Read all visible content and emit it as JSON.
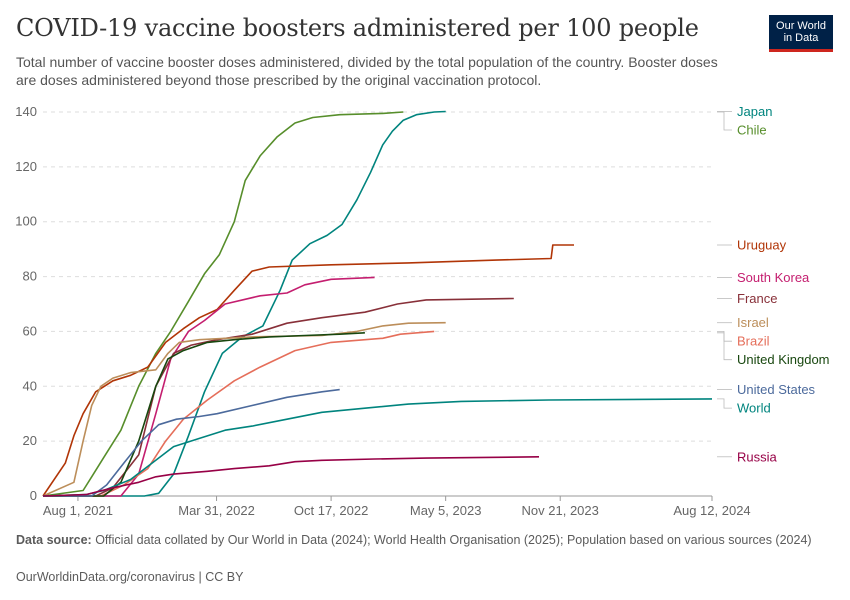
{
  "header": {
    "title": "COVID-19 vaccine boosters administered per 100 people",
    "subtitle": "Total number of vaccine booster doses administered, divided by the total population of the country. Booster doses are doses administered beyond those prescribed by the original vaccination protocol."
  },
  "logo": {
    "line1": "Our World",
    "line2": "in Data",
    "bg": "#002147",
    "accent": "#ce261e"
  },
  "footer": {
    "source_label": "Data source:",
    "source_text": " Official data collated by Our World in Data (2024); World Health Organisation (2025); Population based on various sources (2024)",
    "credit": "OurWorldinData.org/coronavirus | CC BY"
  },
  "chart_data": {
    "type": "line",
    "x_axis": {
      "type": "date",
      "range": [
        "2021-06-01",
        "2024-08-12"
      ],
      "ticks": [
        "2021-08-01",
        "2022-03-31",
        "2022-10-17",
        "2023-05-05",
        "2023-11-21",
        "2024-08-12"
      ],
      "tick_labels": [
        "Aug 1, 2021",
        "Mar 31, 2022",
        "Oct 17, 2022",
        "May 5, 2023",
        "Nov 21, 2023",
        "Aug 12, 2024"
      ]
    },
    "y_axis": {
      "range": [
        0,
        145
      ],
      "ticks": [
        0,
        20,
        40,
        60,
        80,
        100,
        120,
        140
      ]
    },
    "grid": "horizontal dashed",
    "legend": "right, labels at line ends",
    "series": [
      {
        "name": "Chile",
        "color": "#578e2b",
        "points": [
          [
            "2021-06-01",
            0
          ],
          [
            "2021-08-10",
            2
          ],
          [
            "2021-08-25",
            7
          ],
          [
            "2021-09-15",
            14
          ],
          [
            "2021-10-15",
            24
          ],
          [
            "2021-11-15",
            40
          ],
          [
            "2021-12-15",
            52
          ],
          [
            "2022-01-10",
            60
          ],
          [
            "2022-02-10",
            71
          ],
          [
            "2022-03-10",
            81
          ],
          [
            "2022-04-05",
            88
          ],
          [
            "2022-05-01",
            100
          ],
          [
            "2022-05-20",
            115
          ],
          [
            "2022-06-15",
            124
          ],
          [
            "2022-07-15",
            131
          ],
          [
            "2022-08-15",
            136
          ],
          [
            "2022-09-15",
            138
          ],
          [
            "2022-11-01",
            139
          ],
          [
            "2023-01-15",
            139.5
          ],
          [
            "2023-02-20",
            140
          ]
        ]
      },
      {
        "name": "Japan",
        "color": "#00847e",
        "points": [
          [
            "2021-06-01",
            0
          ],
          [
            "2021-11-25",
            0
          ],
          [
            "2021-12-20",
            1
          ],
          [
            "2022-01-15",
            8
          ],
          [
            "2022-02-10",
            22
          ],
          [
            "2022-03-10",
            38
          ],
          [
            "2022-04-10",
            52
          ],
          [
            "2022-05-15",
            58
          ],
          [
            "2022-06-20",
            62
          ],
          [
            "2022-07-20",
            75
          ],
          [
            "2022-08-10",
            86
          ],
          [
            "2022-09-10",
            92
          ],
          [
            "2022-10-10",
            95
          ],
          [
            "2022-11-05",
            99
          ],
          [
            "2022-12-01",
            108
          ],
          [
            "2022-12-25",
            118
          ],
          [
            "2023-01-15",
            128
          ],
          [
            "2023-02-01",
            133
          ],
          [
            "2023-02-20",
            137
          ],
          [
            "2023-03-15",
            139
          ],
          [
            "2023-04-15",
            140
          ],
          [
            "2023-05-05",
            140.2
          ]
        ]
      },
      {
        "name": "Uruguay",
        "color": "#b13507",
        "points": [
          [
            "2021-06-01",
            0
          ],
          [
            "2021-07-10",
            12
          ],
          [
            "2021-07-25",
            22
          ],
          [
            "2021-08-10",
            30
          ],
          [
            "2021-09-01",
            38
          ],
          [
            "2021-10-01",
            42
          ],
          [
            "2021-11-01",
            44
          ],
          [
            "2021-12-01",
            47
          ],
          [
            "2022-01-01",
            56
          ],
          [
            "2022-02-01",
            61
          ],
          [
            "2022-03-01",
            65
          ],
          [
            "2022-04-01",
            68
          ],
          [
            "2022-05-01",
            75
          ],
          [
            "2022-06-01",
            82
          ],
          [
            "2022-07-01",
            83.5
          ],
          [
            "2022-10-17",
            84.3
          ],
          [
            "2023-03-01",
            85
          ],
          [
            "2023-08-01",
            86
          ],
          [
            "2023-11-05",
            86.6
          ],
          [
            "2023-11-08",
            91.5
          ],
          [
            "2023-12-15",
            91.5
          ]
        ]
      },
      {
        "name": "South Korea",
        "color": "#c41e6f",
        "points": [
          [
            "2021-06-01",
            0
          ],
          [
            "2021-10-15",
            0
          ],
          [
            "2021-11-15",
            8
          ],
          [
            "2021-12-15",
            30
          ],
          [
            "2022-01-10",
            50
          ],
          [
            "2022-02-10",
            60
          ],
          [
            "2022-03-10",
            64
          ],
          [
            "2022-04-15",
            70
          ],
          [
            "2022-06-15",
            73
          ],
          [
            "2022-08-01",
            74
          ],
          [
            "2022-09-01",
            77
          ],
          [
            "2022-10-17",
            79
          ],
          [
            "2023-01-01",
            79.7
          ]
        ]
      },
      {
        "name": "France",
        "color": "#883039",
        "points": [
          [
            "2021-06-01",
            0
          ],
          [
            "2021-09-01",
            0
          ],
          [
            "2021-10-01",
            3
          ],
          [
            "2021-11-15",
            15
          ],
          [
            "2021-12-15",
            40
          ],
          [
            "2022-01-15",
            52
          ],
          [
            "2022-02-15",
            55
          ],
          [
            "2022-04-01",
            57
          ],
          [
            "2022-06-01",
            59
          ],
          [
            "2022-08-01",
            63
          ],
          [
            "2022-10-01",
            65
          ],
          [
            "2022-12-15",
            67
          ],
          [
            "2023-02-10",
            70
          ],
          [
            "2023-04-01",
            71.5
          ],
          [
            "2023-09-01",
            72
          ]
        ]
      },
      {
        "name": "Israel",
        "color": "#bc8e5a",
        "points": [
          [
            "2021-06-01",
            0
          ],
          [
            "2021-07-25",
            5
          ],
          [
            "2021-08-10",
            20
          ],
          [
            "2021-08-25",
            33
          ],
          [
            "2021-09-10",
            40
          ],
          [
            "2021-10-01",
            43
          ],
          [
            "2021-11-01",
            45
          ],
          [
            "2021-12-15",
            46
          ],
          [
            "2022-01-05",
            52
          ],
          [
            "2022-01-25",
            56
          ],
          [
            "2022-03-01",
            57
          ],
          [
            "2022-06-01",
            58
          ],
          [
            "2022-10-01",
            58.5
          ],
          [
            "2022-12-01",
            60
          ],
          [
            "2023-01-15",
            62
          ],
          [
            "2023-03-01",
            63
          ],
          [
            "2023-05-05",
            63.2
          ]
        ]
      },
      {
        "name": "Brazil",
        "color": "#e56e5a",
        "points": [
          [
            "2021-06-01",
            0
          ],
          [
            "2021-09-10",
            0
          ],
          [
            "2021-10-20",
            4
          ],
          [
            "2021-12-01",
            10
          ],
          [
            "2022-01-01",
            20
          ],
          [
            "2022-02-01",
            28
          ],
          [
            "2022-03-15",
            35
          ],
          [
            "2022-05-01",
            42
          ],
          [
            "2022-06-15",
            47
          ],
          [
            "2022-08-15",
            53
          ],
          [
            "2022-10-17",
            56
          ],
          [
            "2023-01-15",
            57.5
          ],
          [
            "2023-02-15",
            59
          ],
          [
            "2023-04-15",
            60
          ]
        ]
      },
      {
        "name": "United Kingdom",
        "color": "#18470f",
        "points": [
          [
            "2021-06-01",
            0
          ],
          [
            "2021-09-15",
            0
          ],
          [
            "2021-10-15",
            5
          ],
          [
            "2021-11-15",
            20
          ],
          [
            "2021-12-15",
            40
          ],
          [
            "2022-01-05",
            50
          ],
          [
            "2022-02-01",
            53
          ],
          [
            "2022-03-15",
            56
          ],
          [
            "2022-05-01",
            57
          ],
          [
            "2022-07-01",
            58
          ],
          [
            "2022-09-01",
            58.5
          ],
          [
            "2022-11-01",
            59
          ],
          [
            "2022-12-15",
            59.5
          ]
        ]
      },
      {
        "name": "United States",
        "color": "#4c6a9c",
        "points": [
          [
            "2021-06-01",
            0
          ],
          [
            "2021-08-25",
            0
          ],
          [
            "2021-09-20",
            4
          ],
          [
            "2021-10-20",
            12
          ],
          [
            "2021-11-20",
            20
          ],
          [
            "2021-12-20",
            26
          ],
          [
            "2022-01-20",
            28
          ],
          [
            "2022-03-01",
            29
          ],
          [
            "2022-04-01",
            30
          ],
          [
            "2022-06-01",
            33
          ],
          [
            "2022-08-01",
            36
          ],
          [
            "2022-10-01",
            38
          ],
          [
            "2022-11-01",
            38.8
          ]
        ]
      },
      {
        "name": "World",
        "color": "#00847e",
        "points": [
          [
            "2021-06-01",
            0
          ],
          [
            "2021-08-15",
            0.5
          ],
          [
            "2021-09-15",
            2
          ],
          [
            "2021-11-01",
            6
          ],
          [
            "2021-12-15",
            13
          ],
          [
            "2022-01-15",
            18
          ],
          [
            "2022-03-01",
            21
          ],
          [
            "2022-04-15",
            24
          ],
          [
            "2022-06-01",
            25.5
          ],
          [
            "2022-08-01",
            28
          ],
          [
            "2022-10-01",
            30.5
          ],
          [
            "2022-12-15",
            32
          ],
          [
            "2023-03-01",
            33.5
          ],
          [
            "2023-06-01",
            34.5
          ],
          [
            "2023-11-01",
            35
          ],
          [
            "2024-08-12",
            35.4
          ]
        ]
      },
      {
        "name": "Russia",
        "color": "#970046",
        "points": [
          [
            "2021-06-01",
            0
          ],
          [
            "2021-08-15",
            0.5
          ],
          [
            "2021-10-01",
            3
          ],
          [
            "2021-11-15",
            5
          ],
          [
            "2021-12-15",
            7
          ],
          [
            "2022-01-15",
            8
          ],
          [
            "2022-03-15",
            9
          ],
          [
            "2022-05-01",
            10
          ],
          [
            "2022-07-01",
            11
          ],
          [
            "2022-08-15",
            12.5
          ],
          [
            "2022-10-01",
            13
          ],
          [
            "2023-01-01",
            13.5
          ],
          [
            "2023-04-01",
            13.8
          ],
          [
            "2023-10-15",
            14.3
          ]
        ]
      }
    ]
  }
}
